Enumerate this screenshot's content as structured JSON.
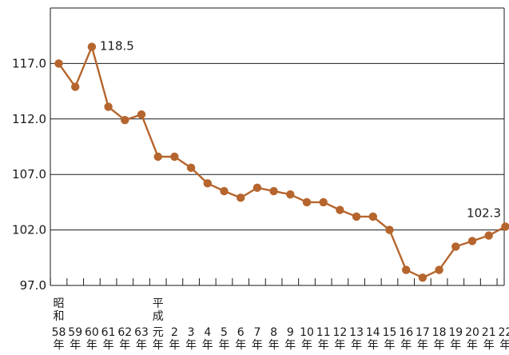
{
  "chart_data": {
    "type": "line",
    "title": "",
    "xlabel": "",
    "ylabel": "",
    "categories": [
      "昭和58年",
      "59年",
      "60年",
      "61年",
      "62年",
      "63年",
      "平成元年",
      "2年",
      "3年",
      "4年",
      "5年",
      "6年",
      "7年",
      "8年",
      "9年",
      "10年",
      "11年",
      "12年",
      "13年",
      "14年",
      "15年",
      "16年",
      "17年",
      "18年",
      "19年",
      "20年",
      "21年",
      "22年"
    ],
    "category_label_lines": [
      [
        "昭",
        "和",
        "58",
        "年"
      ],
      [
        "",
        "",
        "59",
        "年"
      ],
      [
        "",
        "",
        "60",
        "年"
      ],
      [
        "",
        "",
        "61",
        "年"
      ],
      [
        "",
        "",
        "62",
        "年"
      ],
      [
        "",
        "",
        "63",
        "年"
      ],
      [
        "平",
        "成",
        "元",
        "年"
      ],
      [
        "",
        "",
        "2",
        "年"
      ],
      [
        "",
        "",
        "3",
        "年"
      ],
      [
        "",
        "",
        "4",
        "年"
      ],
      [
        "",
        "",
        "5",
        "年"
      ],
      [
        "",
        "",
        "6",
        "年"
      ],
      [
        "",
        "",
        "7",
        "年"
      ],
      [
        "",
        "",
        "8",
        "年"
      ],
      [
        "",
        "",
        "9",
        "年"
      ],
      [
        "",
        "",
        "10",
        "年"
      ],
      [
        "",
        "",
        "11",
        "年"
      ],
      [
        "",
        "",
        "12",
        "年"
      ],
      [
        "",
        "",
        "13",
        "年"
      ],
      [
        "",
        "",
        "14",
        "年"
      ],
      [
        "",
        "",
        "15",
        "年"
      ],
      [
        "",
        "",
        "16",
        "年"
      ],
      [
        "",
        "",
        "17",
        "年"
      ],
      [
        "",
        "",
        "18",
        "年"
      ],
      [
        "",
        "",
        "19",
        "年"
      ],
      [
        "",
        "",
        "20",
        "年"
      ],
      [
        "",
        "",
        "21",
        "年"
      ],
      [
        "",
        "",
        "22",
        "年"
      ]
    ],
    "series": [
      {
        "values": [
          117.0,
          114.9,
          118.5,
          113.1,
          111.9,
          112.4,
          108.6,
          108.6,
          107.6,
          106.2,
          105.5,
          104.9,
          105.8,
          105.5,
          105.2,
          104.5,
          104.5,
          103.8,
          103.2,
          103.2,
          102.0,
          98.4,
          97.7,
          98.4,
          100.5,
          101.0,
          101.5,
          102.3
        ],
        "color": "#b5652d"
      }
    ],
    "data_labels": [
      {
        "index": 2,
        "text": "118.5"
      },
      {
        "index": 27,
        "text": "102.3"
      }
    ],
    "y_ticks": [
      "117.0",
      "112.0",
      "107.0",
      "102.0",
      "97.0"
    ],
    "y_tick_values": [
      117.0,
      112.0,
      107.0,
      102.0,
      97.0
    ],
    "ylim": [
      97.0,
      122.0
    ],
    "grid": "horizontal",
    "line_color": "#b5652d",
    "axis_color": "#1a1a1a"
  }
}
